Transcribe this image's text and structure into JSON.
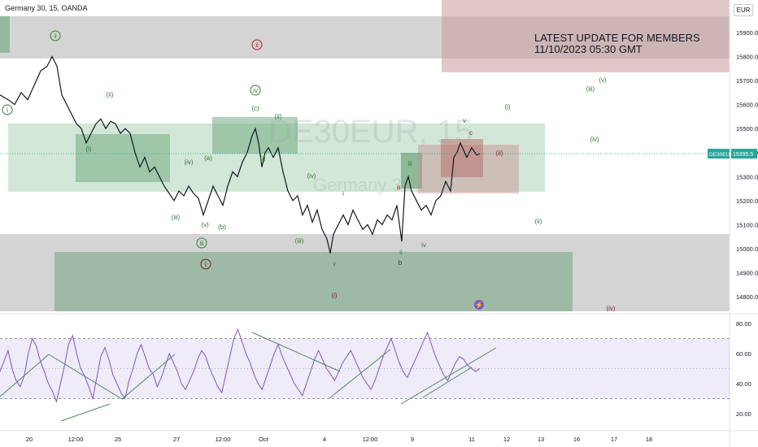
{
  "header": {
    "title": "Germany 30, 15, OANDA",
    "currency": "EUR"
  },
  "banner": {
    "line1": "LATEST UPDATE FOR MEMBERS",
    "line2": "11/10/2023 05:30 GMT"
  },
  "watermark": {
    "symbol": "DE30EUR, 15",
    "name": "Germany 30"
  },
  "chart_data": [
    {
      "type": "line",
      "name": "price",
      "ylim": [
        14740,
        16000
      ],
      "y_ticks": [
        "15900.0",
        "15800.0",
        "15700.0",
        "15600.0",
        "15500.0",
        "15400.0",
        "15300.0",
        "15200.0",
        "15100.0",
        "15000.0",
        "14900.0",
        "14800.0"
      ],
      "last_price_label": "DE30EUR",
      "last_price": "15395.5",
      "x_ticks": [
        "20",
        "12:00",
        "25",
        "27",
        "12:00",
        "Oct",
        "4",
        "12:00",
        "9",
        "11",
        "12",
        "13",
        "16",
        "17",
        "18"
      ],
      "series_points": [
        [
          0,
          15640
        ],
        [
          10,
          15620
        ],
        [
          18,
          15600
        ],
        [
          26,
          15650
        ],
        [
          34,
          15620
        ],
        [
          42,
          15680
        ],
        [
          50,
          15740
        ],
        [
          58,
          15760
        ],
        [
          64,
          15800
        ],
        [
          70,
          15760
        ],
        [
          76,
          15640
        ],
        [
          82,
          15600
        ],
        [
          88,
          15560
        ],
        [
          94,
          15520
        ],
        [
          100,
          15500
        ],
        [
          106,
          15440
        ],
        [
          112,
          15480
        ],
        [
          118,
          15520
        ],
        [
          124,
          15540
        ],
        [
          130,
          15500
        ],
        [
          136,
          15530
        ],
        [
          142,
          15520
        ],
        [
          148,
          15480
        ],
        [
          154,
          15500
        ],
        [
          160,
          15480
        ],
        [
          166,
          15400
        ],
        [
          172,
          15340
        ],
        [
          178,
          15380
        ],
        [
          184,
          15320
        ],
        [
          190,
          15340
        ],
        [
          196,
          15300
        ],
        [
          202,
          15260
        ],
        [
          208,
          15230
        ],
        [
          214,
          15200
        ],
        [
          220,
          15240
        ],
        [
          226,
          15220
        ],
        [
          232,
          15260
        ],
        [
          238,
          15230
        ],
        [
          244,
          15210
        ],
        [
          250,
          15140
        ],
        [
          256,
          15200
        ],
        [
          262,
          15260
        ],
        [
          268,
          15220
        ],
        [
          274,
          15180
        ],
        [
          280,
          15260
        ],
        [
          286,
          15320
        ],
        [
          292,
          15300
        ],
        [
          298,
          15360
        ],
        [
          304,
          15400
        ],
        [
          310,
          15470
        ],
        [
          314,
          15500
        ],
        [
          318,
          15440
        ],
        [
          322,
          15340
        ],
        [
          326,
          15400
        ],
        [
          330,
          15420
        ],
        [
          336,
          15380
        ],
        [
          342,
          15420
        ],
        [
          348,
          15320
        ],
        [
          354,
          15240
        ],
        [
          360,
          15200
        ],
        [
          366,
          15220
        ],
        [
          372,
          15140
        ],
        [
          378,
          15180
        ],
        [
          384,
          15110
        ],
        [
          390,
          15160
        ],
        [
          396,
          15080
        ],
        [
          402,
          15040
        ],
        [
          406,
          14980
        ],
        [
          410,
          15060
        ],
        [
          416,
          15100
        ],
        [
          422,
          15140
        ],
        [
          428,
          15100
        ],
        [
          434,
          15160
        ],
        [
          440,
          15120
        ],
        [
          446,
          15080
        ],
        [
          452,
          15100
        ],
        [
          458,
          15060
        ],
        [
          464,
          15120
        ],
        [
          470,
          15100
        ],
        [
          476,
          15140
        ],
        [
          482,
          15120
        ],
        [
          488,
          15180
        ],
        [
          494,
          15030
        ],
        [
          498,
          15260
        ],
        [
          502,
          15300
        ],
        [
          506,
          15240
        ],
        [
          512,
          15200
        ],
        [
          518,
          15160
        ],
        [
          524,
          15180
        ],
        [
          530,
          15140
        ],
        [
          536,
          15200
        ],
        [
          542,
          15220
        ],
        [
          548,
          15280
        ],
        [
          554,
          15240
        ],
        [
          558,
          15380
        ],
        [
          562,
          15400
        ],
        [
          566,
          15440
        ],
        [
          570,
          15410
        ],
        [
          574,
          15380
        ],
        [
          580,
          15420
        ],
        [
          586,
          15390
        ],
        [
          590,
          15395
        ]
      ],
      "wave_labels": [
        {
          "t": "i",
          "circled": true,
          "color": "#2e7d32"
        },
        {
          "t": "ii",
          "circled": true,
          "color": "#2e7d32"
        },
        {
          "t": "(ii)",
          "color": "#2e7d32"
        },
        {
          "t": "(i)",
          "color": "#2e7d32"
        },
        {
          "t": "(iii)",
          "color": "#2e7d32"
        },
        {
          "t": "(iv)",
          "color": "#2e7d32"
        },
        {
          "t": "(v)",
          "color": "#2e7d32"
        },
        {
          "t": "(a)",
          "color": "#2e7d32"
        },
        {
          "t": "(b)",
          "color": "#2e7d32"
        },
        {
          "t": "(c)",
          "color": "#2e7d32"
        },
        {
          "t": "iii",
          "circled": true,
          "color": "#2e7d32"
        },
        {
          "t": "i",
          "circled": true,
          "color": "#7b1f1f"
        },
        {
          "t": "ii",
          "circled": true,
          "color": "#b71c1c"
        },
        {
          "t": "iv",
          "circled": true,
          "color": "#2e7d32"
        },
        {
          "t": "(i)",
          "color": "#2e7d32"
        },
        {
          "t": "(ii)",
          "color": "#2e7d32"
        },
        {
          "t": "(iii)",
          "color": "#2e7d32"
        },
        {
          "t": "(iv)",
          "color": "#2e7d32"
        },
        {
          "t": "v",
          "color": "#2e7d32"
        },
        {
          "t": "(i)",
          "color": "#7b1f1f"
        },
        {
          "t": "i",
          "color": "#2e7d32"
        },
        {
          "t": "ii",
          "color": "#2e7d32"
        },
        {
          "t": "iii",
          "color": "#2e7d32"
        },
        {
          "t": "iv",
          "color": "#2e7d32"
        },
        {
          "t": "v",
          "color": "#2e7d32"
        },
        {
          "t": "a",
          "color": "#b71c1c"
        },
        {
          "t": "b",
          "color": "#7b1f1f"
        },
        {
          "t": "c",
          "color": "#7b1f1f"
        },
        {
          "t": "(ii)",
          "color": "#7b1f1f"
        },
        {
          "t": "(i)",
          "color": "#2e7d32"
        },
        {
          "t": "(ii)",
          "color": "#2e7d32"
        },
        {
          "t": "(iii)",
          "color": "#2e7d32"
        },
        {
          "t": "(iv)",
          "color": "#2e7d32"
        },
        {
          "t": "(v)",
          "color": "#2e7d32"
        },
        {
          "t": "(iv)",
          "color": "#7b1f1f"
        }
      ]
    },
    {
      "type": "line",
      "name": "rsi",
      "ylim": [
        15,
        85
      ],
      "y_ticks": [
        "80.00",
        "60.00",
        "40.00",
        "20.00"
      ],
      "band": [
        30,
        70
      ],
      "values": [
        48,
        55,
        62,
        50,
        42,
        38,
        45,
        60,
        70,
        65,
        55,
        48,
        40,
        35,
        28,
        40,
        52,
        66,
        72,
        60,
        50,
        45,
        38,
        30,
        44,
        58,
        64,
        56,
        46,
        40,
        34,
        30,
        42,
        50,
        60,
        66,
        58,
        50,
        46,
        38,
        44,
        52,
        60,
        54,
        48,
        40,
        36,
        42,
        48,
        56,
        62,
        58,
        50,
        44,
        38,
        34,
        46,
        58,
        70,
        76,
        68,
        60,
        54,
        46,
        40,
        36,
        44,
        52,
        60,
        66,
        58,
        52,
        46,
        40,
        36,
        32,
        40,
        48,
        56,
        62,
        56,
        50,
        46,
        42,
        48,
        54,
        58,
        62,
        56,
        50,
        44,
        40,
        36,
        42,
        50,
        58,
        64,
        70,
        62,
        54,
        48,
        44,
        50,
        56,
        62,
        68,
        74,
        66,
        58,
        52,
        46,
        42,
        48,
        54,
        58,
        56,
        52,
        50,
        48,
        50
      ]
    }
  ]
}
